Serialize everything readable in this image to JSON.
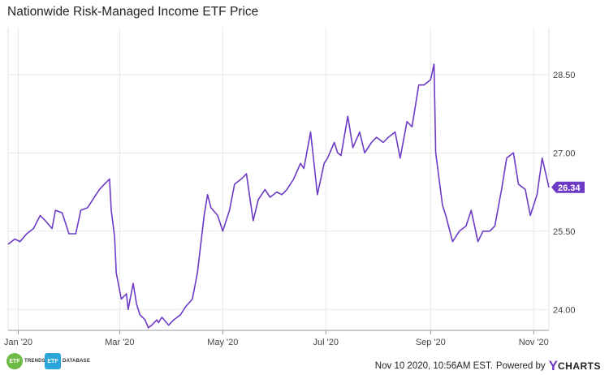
{
  "page": {
    "title": "Nationwide Risk-Managed Income ETF Price",
    "timestamp": "Nov 10 2020, 10:56AM EST.",
    "powered_by": "Powered by",
    "brand_y": "Y",
    "brand_rest": "CHARTS",
    "logo_trends_badge": "ETF",
    "logo_trends_word": "TRENDS",
    "logo_db_badge": "ETF",
    "logo_db_word": "DATABASE"
  },
  "colors": {
    "line": "#6c3ac6",
    "grid": "#e8e8e8",
    "label_bg": "#6c3ac6"
  },
  "chart_data": {
    "type": "line",
    "title": "Nationwide Risk-Managed Income ETF Price",
    "xlabel": "",
    "ylabel": "",
    "x_ticks": [
      "Jan '20",
      "Mar '20",
      "May '20",
      "Jul '20",
      "Sep '20",
      "Nov '20"
    ],
    "y_ticks": [
      "24.00",
      "25.50",
      "27.00",
      "28.50"
    ],
    "ylim": [
      23.6,
      29.4
    ],
    "grid": true,
    "last_value_label": "26.34",
    "series": [
      {
        "name": "",
        "x": [
          "2019-12-26",
          "2019-12-30",
          "2020-01-02",
          "2020-01-06",
          "2020-01-10",
          "2020-01-14",
          "2020-01-17",
          "2020-01-21",
          "2020-01-23",
          "2020-01-27",
          "2020-01-31",
          "2020-02-04",
          "2020-02-07",
          "2020-02-11",
          "2020-02-14",
          "2020-02-18",
          "2020-02-21",
          "2020-02-24",
          "2020-02-25",
          "2020-02-27",
          "2020-02-28",
          "2020-03-02",
          "2020-03-05",
          "2020-03-06",
          "2020-03-09",
          "2020-03-11",
          "2020-03-13",
          "2020-03-16",
          "2020-03-18",
          "2020-03-20",
          "2020-03-23",
          "2020-03-24",
          "2020-03-26",
          "2020-03-30",
          "2020-04-02",
          "2020-04-06",
          "2020-04-09",
          "2020-04-13",
          "2020-04-16",
          "2020-04-20",
          "2020-04-22",
          "2020-04-24",
          "2020-04-28",
          "2020-05-01",
          "2020-05-05",
          "2020-05-08",
          "2020-05-12",
          "2020-05-15",
          "2020-05-19",
          "2020-05-22",
          "2020-05-26",
          "2020-05-29",
          "2020-06-02",
          "2020-06-05",
          "2020-06-08",
          "2020-06-10",
          "2020-06-12",
          "2020-06-16",
          "2020-06-18",
          "2020-06-22",
          "2020-06-26",
          "2020-06-30",
          "2020-07-02",
          "2020-07-06",
          "2020-07-08",
          "2020-07-10",
          "2020-07-14",
          "2020-07-17",
          "2020-07-21",
          "2020-07-24",
          "2020-07-28",
          "2020-07-31",
          "2020-08-04",
          "2020-08-07",
          "2020-08-11",
          "2020-08-14",
          "2020-08-18",
          "2020-08-21",
          "2020-08-25",
          "2020-08-28",
          "2020-09-01",
          "2020-09-03",
          "2020-09-04",
          "2020-09-08",
          "2020-09-10",
          "2020-09-14",
          "2020-09-18",
          "2020-09-22",
          "2020-09-25",
          "2020-09-29",
          "2020-10-02",
          "2020-10-06",
          "2020-10-09",
          "2020-10-13",
          "2020-10-16",
          "2020-10-20",
          "2020-10-23",
          "2020-10-27",
          "2020-10-30",
          "2020-11-03",
          "2020-11-06",
          "2020-11-10"
        ],
        "y": [
          25.25,
          25.35,
          25.3,
          25.45,
          25.55,
          25.8,
          25.7,
          25.55,
          25.9,
          25.85,
          25.45,
          25.45,
          25.9,
          25.95,
          26.1,
          26.3,
          26.4,
          26.5,
          25.9,
          25.4,
          24.7,
          24.2,
          24.3,
          24.0,
          24.5,
          24.1,
          23.9,
          23.8,
          23.65,
          23.7,
          23.8,
          23.75,
          23.85,
          23.7,
          23.8,
          23.9,
          24.05,
          24.2,
          24.7,
          25.8,
          26.2,
          25.95,
          25.8,
          25.5,
          25.9,
          26.4,
          26.5,
          26.6,
          25.7,
          26.1,
          26.3,
          26.15,
          26.25,
          26.2,
          26.3,
          26.4,
          26.5,
          26.8,
          26.7,
          27.4,
          26.2,
          26.8,
          26.9,
          27.2,
          27.0,
          26.95,
          27.7,
          27.1,
          27.4,
          27.0,
          27.2,
          27.3,
          27.2,
          27.3,
          27.4,
          26.9,
          27.6,
          27.5,
          28.3,
          28.3,
          28.4,
          28.7,
          27.0,
          26.0,
          25.8,
          25.3,
          25.5,
          25.6,
          25.9,
          25.3,
          25.5,
          25.5,
          25.6,
          26.3,
          26.9,
          27.0,
          26.4,
          26.3,
          25.8,
          26.2,
          26.9,
          26.34
        ]
      }
    ]
  }
}
